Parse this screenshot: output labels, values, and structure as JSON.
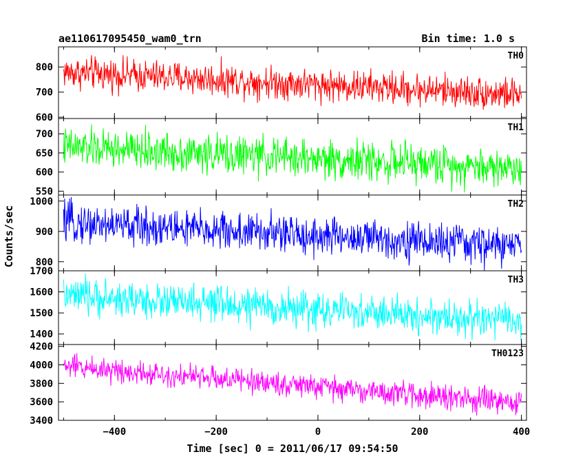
{
  "header": {
    "left_title": "ae110617095450_wam0_trn",
    "right_title": "Bin time: 1.0 s"
  },
  "chart_data": {
    "type": "line",
    "title": "ae110617095450_wam0_trn",
    "bin_time_label": "Bin time: 1.0 s",
    "xlabel": "Time [sec] 0 = 2011/06/17 09:54:50",
    "ylabel": "Counts/sec",
    "xlim": [
      -510,
      410
    ],
    "x_range_data": [
      -500,
      400
    ],
    "x_step": 1.0,
    "x_ticks": [
      -400,
      -200,
      0,
      200,
      400
    ],
    "x_tick_labels": [
      "−400",
      "−200",
      "0",
      "200",
      "400"
    ],
    "panels": [
      {
        "name": "TH0",
        "color": "#ff0000",
        "ylim": [
          595,
          880
        ],
        "y_ticks": [
          600,
          700,
          800
        ],
        "y_tick_labels": [
          "600",
          "700",
          "800"
        ],
        "start": 780,
        "end": 690,
        "noise": 32
      },
      {
        "name": "TH1",
        "color": "#00ff00",
        "ylim": [
          540,
          740
        ],
        "y_ticks": [
          550,
          600,
          650,
          700
        ],
        "y_tick_labels": [
          "550",
          "600",
          "650",
          "700"
        ],
        "start": 665,
        "end": 610,
        "noise": 25
      },
      {
        "name": "TH2",
        "color": "#0000ff",
        "ylim": [
          770,
          1020
        ],
        "y_ticks": [
          800,
          900,
          1000
        ],
        "y_tick_labels": [
          "800",
          "900",
          "1000"
        ],
        "start": 930,
        "end": 850,
        "noise": 32
      },
      {
        "name": "TH3",
        "color": "#00ffff",
        "ylim": [
          1350,
          1700
        ],
        "y_ticks": [
          1400,
          1500,
          1600,
          1700
        ],
        "y_tick_labels": [
          "1400",
          "1500",
          "1600",
          "1700"
        ],
        "start": 1580,
        "end": 1460,
        "noise": 42
      },
      {
        "name": "TH0123",
        "color": "#ff00ff",
        "ylim": [
          3400,
          4220
        ],
        "y_ticks": [
          3400,
          3600,
          3800,
          4000,
          4200
        ],
        "y_tick_labels": [
          "3400",
          "3600",
          "3800",
          "4000",
          "4200"
        ],
        "start": 3990,
        "end": 3580,
        "noise": 65
      }
    ]
  }
}
